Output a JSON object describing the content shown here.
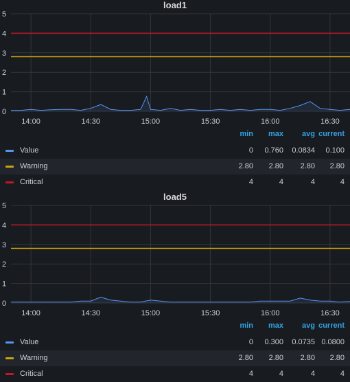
{
  "panels": [
    {
      "title": "load1",
      "legend": {
        "headers": {
          "min": "min",
          "max": "max",
          "avg": "avg",
          "current": "current"
        },
        "series": [
          {
            "name": "Value",
            "min": "0",
            "max": "0.760",
            "avg": "0.0834",
            "current": "0.100"
          },
          {
            "name": "Warning",
            "min": "2.80",
            "max": "2.80",
            "avg": "2.80",
            "current": "2.80"
          },
          {
            "name": "Critical",
            "min": "4",
            "max": "4",
            "avg": "4",
            "current": "4"
          }
        ]
      }
    },
    {
      "title": "load5",
      "legend": {
        "headers": {
          "min": "min",
          "max": "max",
          "avg": "avg",
          "current": "current"
        },
        "series": [
          {
            "name": "Value",
            "min": "0",
            "max": "0.300",
            "avg": "0.0735",
            "current": "0.0800"
          },
          {
            "name": "Warning",
            "min": "2.80",
            "max": "2.80",
            "avg": "2.80",
            "current": "2.80"
          },
          {
            "name": "Critical",
            "min": "4",
            "max": "4",
            "avg": "4",
            "current": "4"
          }
        ]
      }
    }
  ],
  "colors": {
    "value": "#5794f2",
    "warning": "#c9a40f",
    "critical": "#c4162a",
    "grid": "#33363c",
    "legend_header": "#33a2e5",
    "background": "#181b1f"
  },
  "chart_data": [
    {
      "type": "line",
      "title": "load1",
      "xlabel": "",
      "ylabel": "",
      "xticks": [
        "14:00",
        "14:30",
        "15:00",
        "15:30",
        "16:00",
        "16:30"
      ],
      "ylim": [
        0,
        5
      ],
      "yticks": [
        0,
        1,
        2,
        3,
        4,
        5
      ],
      "xlim": [
        "13:50",
        "16:40"
      ],
      "grid": true,
      "legend": "bottom",
      "series": [
        {
          "name": "Value",
          "color": "#5794f2",
          "x": [
            "13:50",
            "13:55",
            "14:00",
            "14:05",
            "14:10",
            "14:15",
            "14:20",
            "14:25",
            "14:30",
            "14:35",
            "14:40",
            "14:45",
            "14:50",
            "14:55",
            "14:58",
            "15:00",
            "15:05",
            "15:10",
            "15:15",
            "15:20",
            "15:25",
            "15:30",
            "15:35",
            "15:40",
            "15:45",
            "15:50",
            "15:55",
            "16:00",
            "16:05",
            "16:10",
            "16:15",
            "16:20",
            "16:25",
            "16:30",
            "16:35",
            "16:40"
          ],
          "values": [
            0.05,
            0.05,
            0.1,
            0.05,
            0.08,
            0.1,
            0.1,
            0.05,
            0.15,
            0.35,
            0.1,
            0.05,
            0.05,
            0.1,
            0.76,
            0.1,
            0.05,
            0.15,
            0.05,
            0.1,
            0.05,
            0.05,
            0.1,
            0.05,
            0.1,
            0.05,
            0.1,
            0.1,
            0.05,
            0.15,
            0.3,
            0.5,
            0.15,
            0.1,
            0.05,
            0.1
          ]
        },
        {
          "name": "Warning",
          "color": "#c9a40f",
          "x": [
            "13:50",
            "16:40"
          ],
          "values": [
            2.8,
            2.8
          ]
        },
        {
          "name": "Critical",
          "color": "#c4162a",
          "x": [
            "13:50",
            "16:40"
          ],
          "values": [
            4,
            4
          ]
        }
      ]
    },
    {
      "type": "line",
      "title": "load5",
      "xlabel": "",
      "ylabel": "",
      "xticks": [
        "14:00",
        "14:30",
        "15:00",
        "15:30",
        "16:00",
        "16:30"
      ],
      "ylim": [
        0,
        5
      ],
      "yticks": [
        0,
        1,
        2,
        3,
        4,
        5
      ],
      "xlim": [
        "13:50",
        "16:40"
      ],
      "grid": true,
      "legend": "bottom",
      "series": [
        {
          "name": "Value",
          "color": "#5794f2",
          "x": [
            "13:50",
            "13:55",
            "14:00",
            "14:05",
            "14:10",
            "14:15",
            "14:20",
            "14:25",
            "14:30",
            "14:35",
            "14:40",
            "14:45",
            "14:50",
            "14:55",
            "15:00",
            "15:05",
            "15:10",
            "15:15",
            "15:20",
            "15:25",
            "15:30",
            "15:35",
            "15:40",
            "15:45",
            "15:50",
            "15:55",
            "16:00",
            "16:05",
            "16:10",
            "16:15",
            "16:20",
            "16:25",
            "16:30",
            "16:35",
            "16:40"
          ],
          "values": [
            0.05,
            0.05,
            0.05,
            0.05,
            0.05,
            0.05,
            0.05,
            0.1,
            0.1,
            0.3,
            0.15,
            0.1,
            0.05,
            0.05,
            0.15,
            0.1,
            0.05,
            0.05,
            0.05,
            0.05,
            0.05,
            0.05,
            0.05,
            0.05,
            0.05,
            0.1,
            0.1,
            0.1,
            0.1,
            0.25,
            0.15,
            0.1,
            0.1,
            0.05,
            0.08
          ]
        },
        {
          "name": "Warning",
          "color": "#c9a40f",
          "x": [
            "13:50",
            "16:40"
          ],
          "values": [
            2.8,
            2.8
          ]
        },
        {
          "name": "Critical",
          "color": "#c4162a",
          "x": [
            "13:50",
            "16:40"
          ],
          "values": [
            4,
            4
          ]
        }
      ]
    }
  ]
}
